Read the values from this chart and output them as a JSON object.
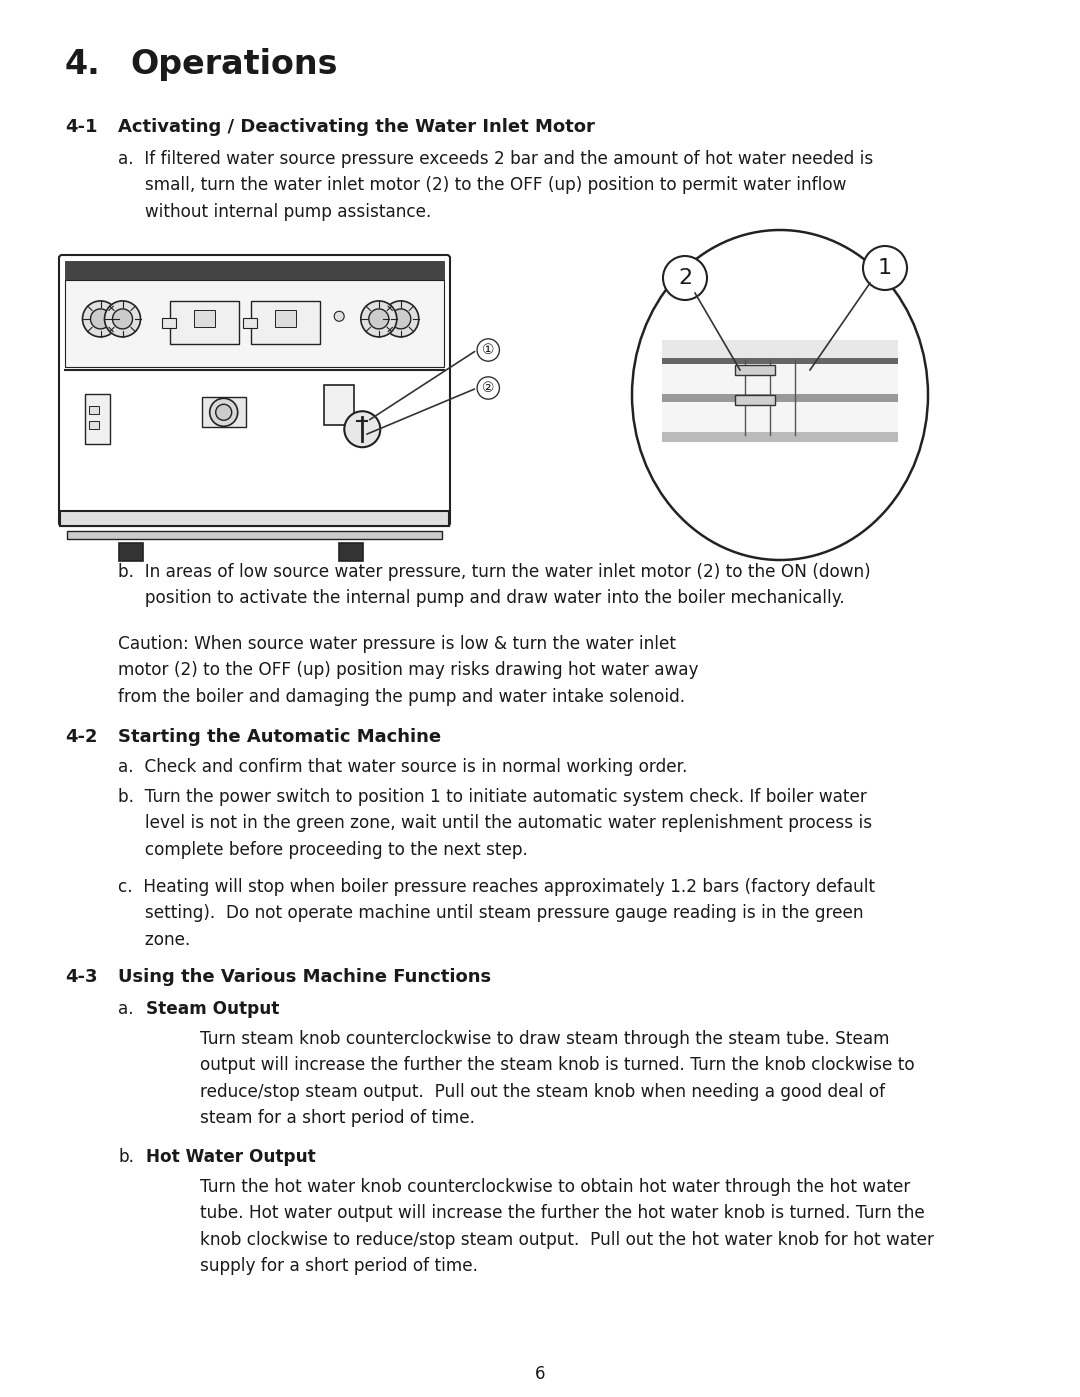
{
  "background_color": "#ffffff",
  "text_color": "#1a1a1a",
  "page_number": "6",
  "title_num": "4.",
  "title_text": "Operations",
  "s41_num": "4-1",
  "s41_head": "Activating / Deactivating the Water Inlet Motor",
  "s41a": "a.  If filtered water source pressure exceeds 2 bar and the amount of hot water needed is\n     small, turn the water inlet motor (2) to the OFF (up) position to permit water inflow\n     without internal pump assistance.",
  "s41b": "b.  In areas of low source water pressure, turn the water inlet motor (2) to the ON (down)\n     position to activate the internal pump and draw water into the boiler mechanically.",
  "s41_caution": "Caution: When source water pressure is low & turn the water inlet\nmotor (2) to the OFF (up) position may risks drawing hot water away\nfrom the boiler and damaging the pump and water intake solenoid.",
  "s42_num": "4-2",
  "s42_head": "Starting the Automatic Machine",
  "s42a": "a.  Check and confirm that water source is in normal working order.",
  "s42b": "b.  Turn the power switch to position 1 to initiate automatic system check. If boiler water\n     level is not in the green zone, wait until the automatic water replenishment process is\n     complete before proceeding to the next step.",
  "s42c": "c.  Heating will stop when boiler pressure reaches approximately 1.2 bars (factory default\n     setting).  Do not operate machine until steam pressure gauge reading is in the green\n     zone.",
  "s43_num": "4-3",
  "s43_head": "Using the Various Machine Functions",
  "s43a_head": "Steam Output",
  "s43a_body": "Turn steam knob counterclockwise to draw steam through the steam tube. Steam\noutput will increase the further the steam knob is turned. Turn the knob clockwise to\nreduce/stop steam output.  Pull out the steam knob when needing a good deal of\nsteam for a short period of time.",
  "s43b_head": "Hot Water Output",
  "s43b_body": "Turn the hot water knob counterclockwise to obtain hot water through the hot water\ntube. Hot water output will increase the further the hot water knob is turned. Turn the\nknob clockwise to reduce/stop steam output.  Pull out the hot water knob for hot water\nsupply for a short period of time."
}
